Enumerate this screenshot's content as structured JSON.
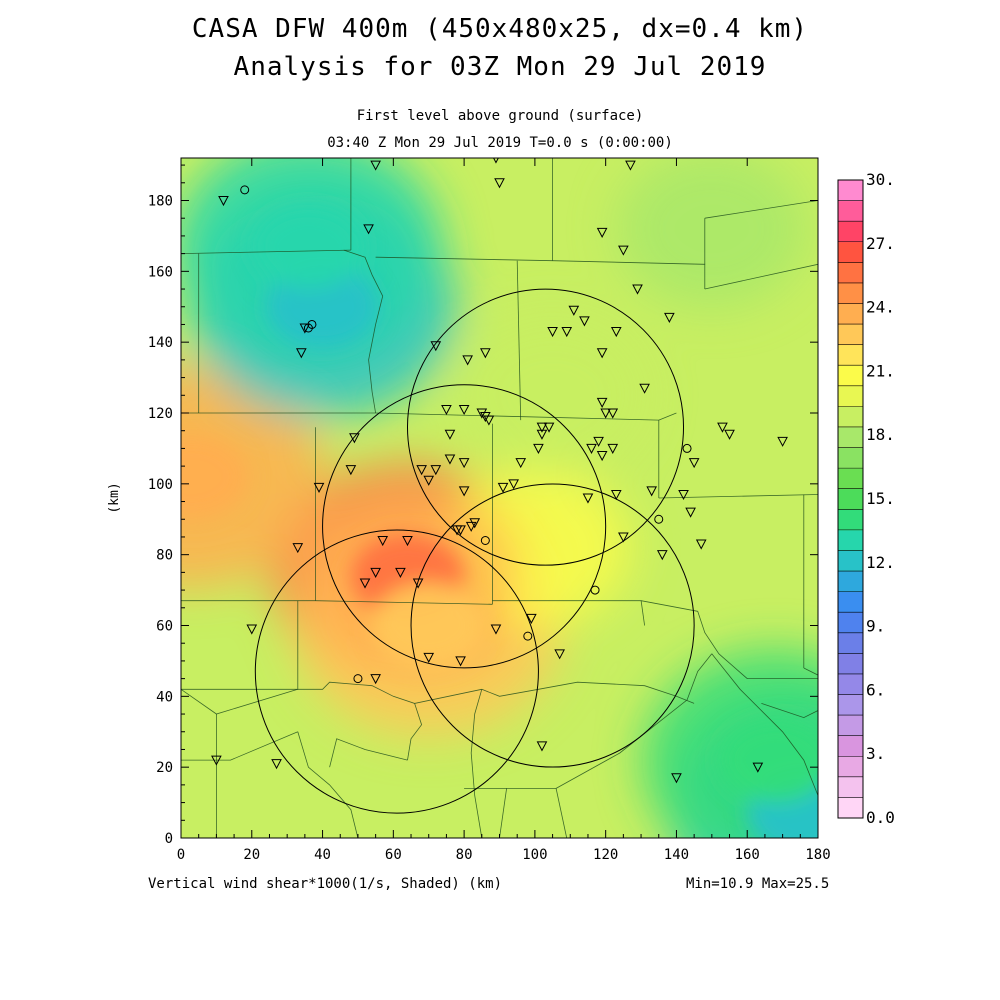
{
  "header": {
    "title_line1": "CASA DFW 400m (450x480x25, dx=0.4 km)",
    "title_line2": "Analysis for 03Z Mon 29 Jul 2019",
    "level": "First level above ground (surface)",
    "time": "03:40 Z Mon 29 Jul 2019    T=0.0 s (0:00:00)"
  },
  "footer": {
    "field_label": "Vertical wind shear*1000(1/s, Shaded)  (km)",
    "minmax": "Min=10.9 Max=25.5"
  },
  "chart_data": {
    "type": "heatmap",
    "xlabel": "(km)",
    "ylabel": "(km)",
    "xlim": [
      0,
      180
    ],
    "ylim": [
      0,
      192
    ],
    "x_ticks": [
      "0",
      "20",
      "40",
      "60",
      "80",
      "100",
      "120",
      "140",
      "160",
      "180"
    ],
    "y_ticks": [
      "0",
      "20",
      "40",
      "60",
      "80",
      "100",
      "120",
      "140",
      "160",
      "180"
    ],
    "min": 10.9,
    "max": 25.5,
    "colorbar": {
      "range": [
        0,
        30
      ],
      "labels": [
        "30.",
        "27.",
        "24.",
        "21.",
        "18.",
        "15.",
        "12.",
        "9.",
        "6.",
        "3.",
        "0.0"
      ],
      "colors": [
        "#ffd6f6",
        "#f4c2ee",
        "#e8a9e4",
        "#d995df",
        "#c49ae6",
        "#ab96ea",
        "#9488e8",
        "#8080e6",
        "#6b7fe8",
        "#4f82ee",
        "#3a8ef0",
        "#2ea8dd",
        "#28c2c8",
        "#26d6ac",
        "#32dc7a",
        "#4cdc5a",
        "#6ade52",
        "#8ae262",
        "#a8e86a",
        "#c8ef62",
        "#e8f752",
        "#fbfb4a",
        "#ffe45a",
        "#ffc858",
        "#ffae50",
        "#ff9046",
        "#ff7242",
        "#ff5440",
        "#ff4466",
        "#ff5c9a",
        "#ff8ad0"
      ]
    },
    "field_centers": [
      {
        "x": 64,
        "y": 74,
        "value": 25.5
      },
      {
        "x": 70,
        "y": 60,
        "value": 22.5
      },
      {
        "x": 3,
        "y": 102,
        "value": 24
      },
      {
        "x": 100,
        "y": 82,
        "value": 21
      },
      {
        "x": 40,
        "y": 150,
        "value": 12.2
      },
      {
        "x": 36,
        "y": 167,
        "value": 12.5
      },
      {
        "x": 176,
        "y": 7,
        "value": 11.5
      },
      {
        "x": 168,
        "y": 22,
        "value": 13.5
      },
      {
        "x": 105,
        "y": 125,
        "value": 19
      },
      {
        "x": 150,
        "y": 172,
        "value": 17.5
      }
    ],
    "range_rings": [
      {
        "x": 103,
        "y": 116,
        "r": 39
      },
      {
        "x": 80,
        "y": 88,
        "r": 40
      },
      {
        "x": 105,
        "y": 60,
        "r": 40
      },
      {
        "x": 61,
        "y": 47,
        "r": 40
      }
    ],
    "stations_triangle": [
      [
        12,
        180
      ],
      [
        55,
        190
      ],
      [
        89,
        192
      ],
      [
        90,
        185
      ],
      [
        53,
        172
      ],
      [
        119,
        171
      ],
      [
        125,
        166
      ],
      [
        127,
        190
      ],
      [
        35,
        144
      ],
      [
        34,
        137
      ],
      [
        72,
        139
      ],
      [
        129,
        155
      ],
      [
        138,
        147
      ],
      [
        111,
        149
      ],
      [
        114,
        146
      ],
      [
        105,
        143
      ],
      [
        109,
        143
      ],
      [
        123,
        143
      ],
      [
        86,
        137
      ],
      [
        81,
        135
      ],
      [
        119,
        137
      ],
      [
        131,
        127
      ],
      [
        75,
        121
      ],
      [
        80,
        121
      ],
      [
        85,
        120
      ],
      [
        86,
        119
      ],
      [
        87,
        118
      ],
      [
        102,
        116
      ],
      [
        104,
        116
      ],
      [
        102,
        114
      ],
      [
        119,
        123
      ],
      [
        120,
        120
      ],
      [
        122,
        120
      ],
      [
        118,
        112
      ],
      [
        116,
        110
      ],
      [
        122,
        110
      ],
      [
        119,
        108
      ],
      [
        101,
        110
      ],
      [
        49,
        113
      ],
      [
        76,
        114
      ],
      [
        96,
        106
      ],
      [
        76,
        107
      ],
      [
        80,
        106
      ],
      [
        72,
        104
      ],
      [
        68,
        104
      ],
      [
        48,
        104
      ],
      [
        70,
        101
      ],
      [
        91,
        99
      ],
      [
        94,
        100
      ],
      [
        80,
        98
      ],
      [
        115,
        96
      ],
      [
        123,
        97
      ],
      [
        133,
        98
      ],
      [
        144,
        92
      ],
      [
        39,
        99
      ],
      [
        64,
        84
      ],
      [
        78,
        87
      ],
      [
        79,
        87
      ],
      [
        82,
        88
      ],
      [
        83,
        89
      ],
      [
        57,
        84
      ],
      [
        55,
        75
      ],
      [
        62,
        75
      ],
      [
        67,
        72
      ],
      [
        52,
        72
      ],
      [
        33,
        82
      ],
      [
        125,
        85
      ],
      [
        136,
        80
      ],
      [
        147,
        83
      ],
      [
        155,
        114
      ],
      [
        153,
        116
      ],
      [
        145,
        106
      ],
      [
        170,
        112
      ],
      [
        142,
        97
      ],
      [
        20,
        59
      ],
      [
        89,
        59
      ],
      [
        99,
        62
      ],
      [
        107,
        52
      ],
      [
        70,
        51
      ],
      [
        79,
        50
      ],
      [
        55,
        45
      ],
      [
        27,
        21
      ],
      [
        10,
        22
      ],
      [
        102,
        26
      ],
      [
        140,
        17
      ],
      [
        163,
        20
      ]
    ],
    "stations_circle": [
      [
        18,
        183
      ],
      [
        37,
        145
      ],
      [
        36,
        144
      ],
      [
        143,
        110
      ],
      [
        135,
        90
      ],
      [
        86,
        84
      ],
      [
        117,
        70
      ],
      [
        98,
        57
      ],
      [
        50,
        45
      ]
    ],
    "county_lines": [
      [
        [
          0,
          165
        ],
        [
          48,
          166
        ]
      ],
      [
        [
          48,
          166
        ],
        [
          48,
          192
        ]
      ],
      [
        [
          46,
          166
        ],
        [
          52,
          164
        ],
        [
          54,
          159
        ],
        [
          57,
          153
        ],
        [
          55,
          145
        ],
        [
          53,
          135
        ],
        [
          54,
          126
        ],
        [
          55,
          120
        ]
      ],
      [
        [
          5,
          165
        ],
        [
          5,
          120
        ]
      ],
      [
        [
          0,
          120
        ],
        [
          55,
          120
        ]
      ],
      [
        [
          55,
          120
        ],
        [
          135,
          118
        ]
      ],
      [
        [
          55,
          164
        ],
        [
          105,
          163
        ]
      ],
      [
        [
          105,
          163
        ],
        [
          105,
          192
        ]
      ],
      [
        [
          95,
          163
        ],
        [
          96,
          118
        ]
      ],
      [
        [
          105,
          163
        ],
        [
          148,
          162
        ],
        [
          148,
          155
        ]
      ],
      [
        [
          148,
          162
        ],
        [
          148,
          175
        ]
      ],
      [
        [
          148,
          175
        ],
        [
          180,
          180
        ]
      ],
      [
        [
          148,
          155
        ],
        [
          180,
          162
        ]
      ],
      [
        [
          135,
          118
        ],
        [
          135,
          96
        ]
      ],
      [
        [
          135,
          96
        ],
        [
          180,
          97
        ]
      ],
      [
        [
          135,
          118
        ],
        [
          140,
          120
        ]
      ],
      [
        [
          38,
          116
        ],
        [
          38,
          67
        ]
      ],
      [
        [
          0,
          67
        ],
        [
          38,
          67
        ],
        [
          88,
          66
        ]
      ],
      [
        [
          88,
          66
        ],
        [
          88,
          117
        ]
      ],
      [
        [
          88,
          67
        ],
        [
          130,
          67
        ],
        [
          146,
          64
        ]
      ],
      [
        [
          130,
          67
        ],
        [
          131,
          60
        ]
      ],
      [
        [
          146,
          64
        ],
        [
          148,
          58
        ],
        [
          152,
          52
        ],
        [
          160,
          45
        ],
        [
          180,
          45
        ]
      ],
      [
        [
          176,
          97
        ],
        [
          176,
          48
        ]
      ],
      [
        [
          176,
          48
        ],
        [
          180,
          46
        ]
      ],
      [
        [
          33,
          67
        ],
        [
          33,
          42
        ],
        [
          0,
          42
        ]
      ],
      [
        [
          0,
          42
        ],
        [
          10,
          35
        ],
        [
          33,
          42
        ]
      ],
      [
        [
          10,
          35
        ],
        [
          10,
          0
        ]
      ],
      [
        [
          0,
          22
        ],
        [
          14,
          22
        ],
        [
          33,
          30
        ]
      ],
      [
        [
          33,
          30
        ],
        [
          36,
          20
        ],
        [
          42,
          15
        ],
        [
          48,
          8
        ],
        [
          50,
          0
        ]
      ],
      [
        [
          33,
          42
        ],
        [
          40,
          42
        ],
        [
          42,
          44
        ],
        [
          54,
          43
        ],
        [
          60,
          40
        ],
        [
          66,
          38
        ],
        [
          85,
          42
        ]
      ],
      [
        [
          85,
          42
        ],
        [
          83,
          35
        ],
        [
          82,
          24
        ],
        [
          83,
          12
        ],
        [
          85,
          0
        ]
      ],
      [
        [
          85,
          42
        ],
        [
          90,
          40
        ],
        [
          101,
          42
        ],
        [
          112,
          44
        ],
        [
          131,
          43
        ],
        [
          140,
          40
        ],
        [
          145,
          38
        ]
      ],
      [
        [
          66,
          38
        ],
        [
          68,
          32
        ],
        [
          65,
          28
        ],
        [
          64,
          22
        ]
      ],
      [
        [
          64,
          22
        ],
        [
          52,
          25
        ],
        [
          44,
          28
        ],
        [
          42,
          20
        ]
      ],
      [
        [
          80,
          14
        ],
        [
          100,
          14
        ],
        [
          106,
          14
        ]
      ],
      [
        [
          106,
          14
        ],
        [
          109,
          0
        ]
      ],
      [
        [
          106,
          14
        ],
        [
          124,
          24
        ],
        [
          143,
          39
        ],
        [
          146,
          47
        ],
        [
          150,
          52
        ]
      ],
      [
        [
          90,
          0
        ],
        [
          92,
          14
        ]
      ],
      [
        [
          150,
          52
        ],
        [
          158,
          42
        ],
        [
          170,
          30
        ],
        [
          176,
          22
        ],
        [
          180,
          12
        ]
      ],
      [
        [
          164,
          38
        ],
        [
          176,
          34
        ],
        [
          180,
          36
        ]
      ]
    ]
  }
}
